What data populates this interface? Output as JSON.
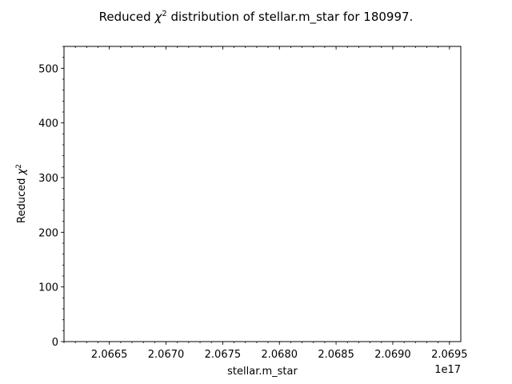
{
  "chart_data": {
    "type": "scatter",
    "title_prefix": "Reduced ",
    "title_chi": "χ",
    "title_exp": "2",
    "title_suffix": " distribution of stellar.m_star for 180997.",
    "xlabel": "stellar.m_star",
    "ylabel_prefix": "Reduced ",
    "ylabel_chi": "χ",
    "ylabel_exp": "2",
    "x_offset_label": "1e17",
    "xlim": [
      2.0661,
      2.0696
    ],
    "ylim": [
      0,
      540
    ],
    "x_ticks": [
      {
        "value": 2.0665,
        "label": "2.0665"
      },
      {
        "value": 2.067,
        "label": "2.0670"
      },
      {
        "value": 2.0675,
        "label": "2.0675"
      },
      {
        "value": 2.068,
        "label": "2.0680"
      },
      {
        "value": 2.0685,
        "label": "2.0685"
      },
      {
        "value": 2.069,
        "label": "2.0690"
      },
      {
        "value": 2.0695,
        "label": "2.0695"
      }
    ],
    "y_ticks": [
      {
        "value": 0,
        "label": "0"
      },
      {
        "value": 100,
        "label": "100"
      },
      {
        "value": 200,
        "label": "200"
      },
      {
        "value": 300,
        "label": "300"
      },
      {
        "value": 400,
        "label": "400"
      },
      {
        "value": 500,
        "label": "500"
      }
    ],
    "x_minor_step": 0.0001,
    "y_minor_step": 20,
    "points": [],
    "grid": false,
    "legend": "none"
  }
}
